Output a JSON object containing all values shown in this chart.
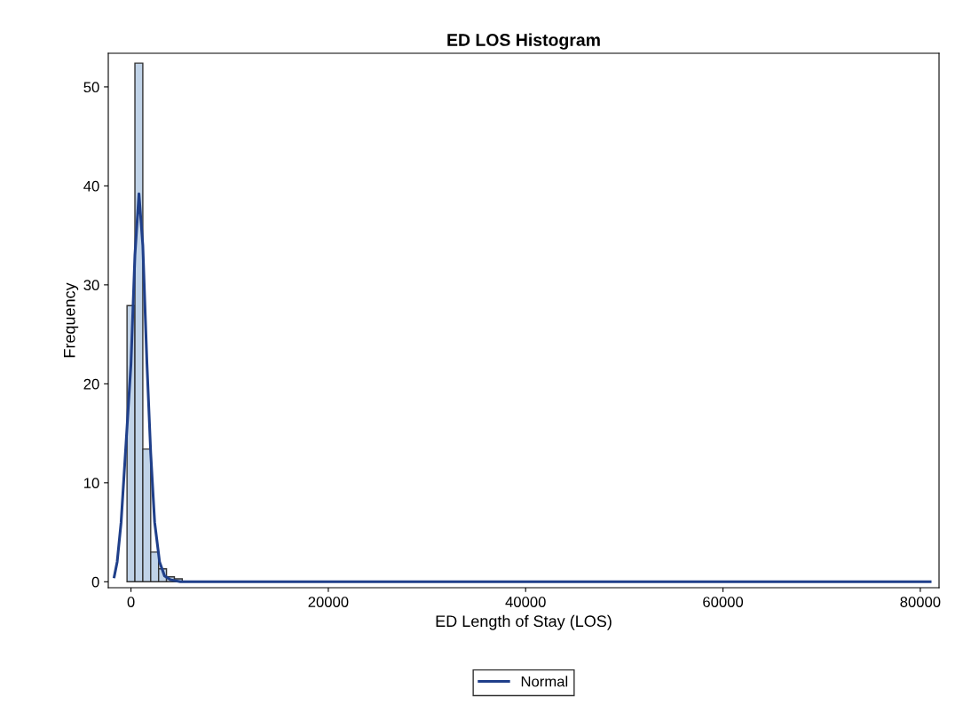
{
  "chart_data": {
    "type": "histogram",
    "title": "ED LOS Histogram",
    "xlabel": "ED Length of Stay (LOS)",
    "ylabel": "Frequency",
    "bins": [
      -400,
      400,
      1200,
      2000,
      2800,
      3600,
      4400,
      5200
    ],
    "values": [
      27.9,
      52.4,
      13.4,
      3.0,
      1.3,
      0.5,
      0.3
    ],
    "color": "#c0d3e8",
    "series": [
      {
        "name": "Normal",
        "type": "line",
        "color": "#1f3f8a",
        "x": [
          -1700,
          -1400,
          -1000,
          -500,
          0,
          400,
          810,
          1200,
          1620,
          2000,
          2400,
          2900,
          3400,
          4000,
          5000,
          10000,
          81000
        ],
        "values": [
          0.5,
          2,
          6,
          14,
          22,
          33,
          39.2,
          34,
          22,
          13,
          6,
          2,
          0.6,
          0.2,
          0,
          0,
          0
        ]
      }
    ],
    "xlim": [
      -2300,
      81900
    ],
    "ylim": [
      -0.6,
      53.4
    ],
    "xticks": [
      0,
      20000,
      40000,
      60000,
      80000
    ],
    "yticks": [
      0,
      10,
      20,
      30,
      40,
      50
    ],
    "grid": false,
    "legend": "bottom"
  }
}
